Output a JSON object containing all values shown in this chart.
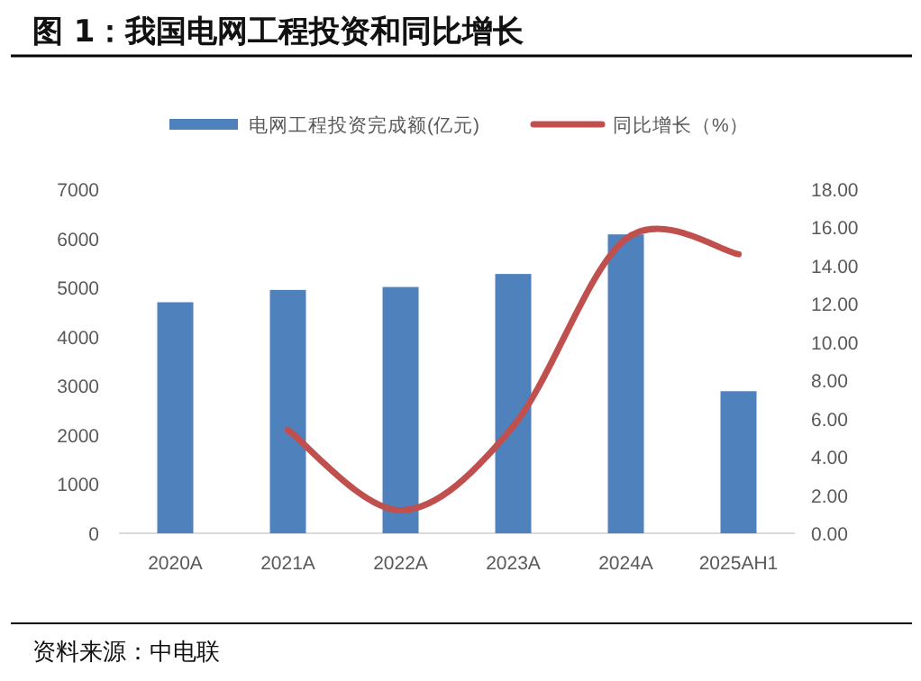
{
  "chart_data": {
    "type": "bar",
    "title": "图 1：我国电网工程投资和同比增长",
    "categories": [
      "2020A",
      "2021A",
      "2022A",
      "2023A",
      "2024A",
      "2025AH1"
    ],
    "series": [
      {
        "name": "电网工程投资完成额(亿元)",
        "color": "#4f81bd",
        "values": [
          4700,
          4950,
          5010,
          5275,
          6080,
          2890
        ]
      },
      {
        "name": "同比增长（%）",
        "type": "line",
        "axis": "y2",
        "color": "#c0504d",
        "values": [
          null,
          5.4,
          1.2,
          5.6,
          15.4,
          14.6
        ]
      }
    ],
    "ylim": [
      0,
      7000
    ],
    "yticks": [
      0,
      1000,
      2000,
      3000,
      4000,
      5000,
      6000,
      7000
    ],
    "y2lim": [
      0,
      18
    ],
    "y2ticks": [
      {
        "value": 0,
        "label": "0.00"
      },
      {
        "value": 2,
        "label": "2.00"
      },
      {
        "value": 4,
        "label": "4.00"
      },
      {
        "value": 6,
        "label": "6.00"
      },
      {
        "value": 8,
        "label": "8.00"
      },
      {
        "value": 10,
        "label": "10.00"
      },
      {
        "value": 12,
        "label": "12.00"
      },
      {
        "value": 14,
        "label": "14.00"
      },
      {
        "value": 16,
        "label": "16.00"
      },
      {
        "value": 18,
        "label": "18.00"
      }
    ],
    "legend": "top",
    "annotations": [
      "资料来源：中电联"
    ]
  }
}
